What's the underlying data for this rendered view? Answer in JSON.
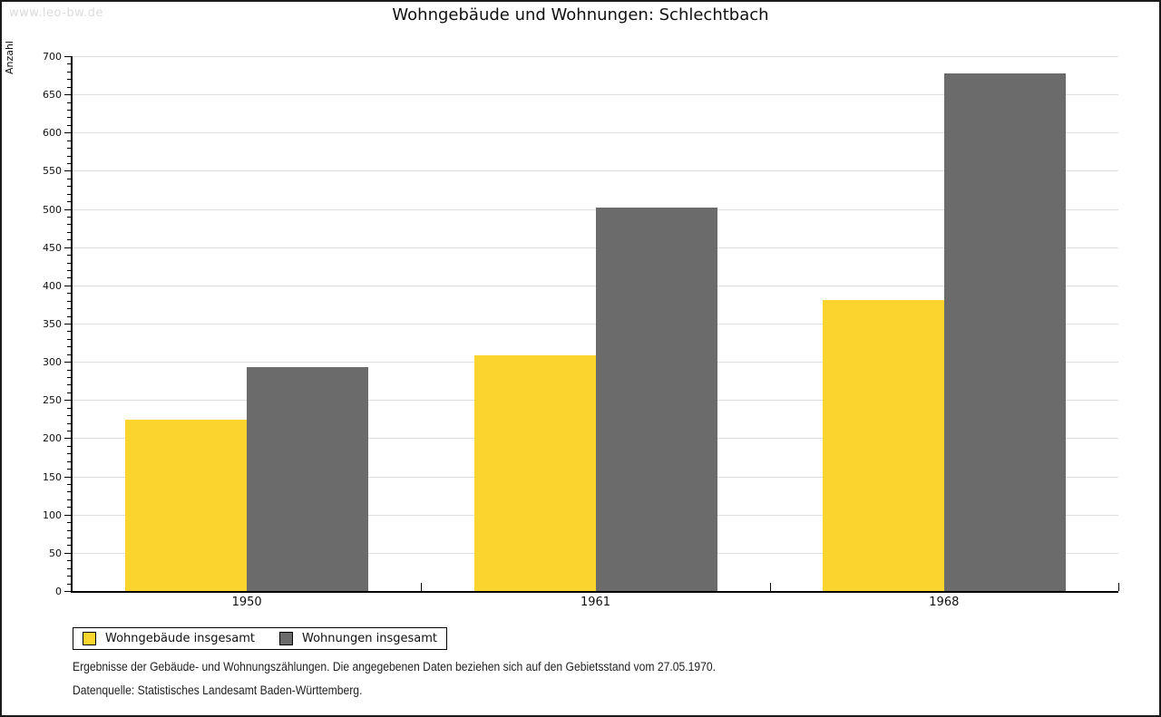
{
  "watermark": "www.leo-bw.de",
  "title": "Wohngebäude und Wohnungen: Schlechtbach",
  "chart_data": {
    "type": "bar",
    "categories": [
      "1950",
      "1961",
      "1968"
    ],
    "series": [
      {
        "name": "Wohngebäude insgesamt",
        "color": "#fcd42e",
        "values": [
          224,
          309,
          381
        ]
      },
      {
        "name": "Wohnungen insgesamt",
        "color": "#6b6b6b",
        "values": [
          293,
          502,
          678
        ]
      }
    ],
    "title": "Wohngebäude und Wohnungen: Schlechtbach",
    "xlabel": "",
    "ylabel": "Anzahl",
    "ylim": [
      0,
      700
    ],
    "ytick_step": 50,
    "yminor_tick_step": 10,
    "grid": true,
    "legend_position": "bottom-left",
    "gridline_color": "#dedede",
    "axis_color": "#000000"
  },
  "footer": {
    "line1": "Ergebnisse der Gebäude- und Wohnungszählungen. Die angegebenen Daten beziehen sich auf den Gebietsstand vom 27.05.1970.",
    "line2": "Datenquelle: Statistisches Landesamt Baden-Württemberg."
  }
}
